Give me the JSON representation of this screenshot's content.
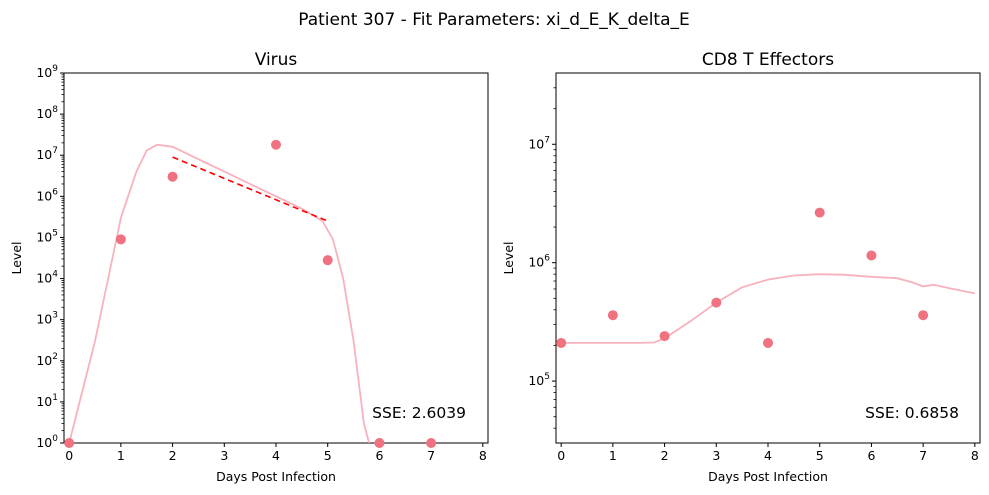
{
  "suptitle": "Patient 307 - Fit Parameters: xi_d_E_K_delta_E",
  "colors": {
    "points": "#f0717f",
    "fit": "#f7b2bd",
    "trend": "#ff0000",
    "axis": "#000000"
  },
  "chart_data": [
    {
      "type": "scatter",
      "title": "Virus",
      "xlabel": "Days Post Infection",
      "ylabel": "Level",
      "xlim": [
        -0.1,
        8.1
      ],
      "ylim": [
        1,
        1000000000
      ],
      "yscale": "log",
      "grid": false,
      "xticks": [
        0,
        1,
        2,
        3,
        4,
        5,
        6,
        7,
        8
      ],
      "yticks": [
        1,
        10,
        100,
        1000,
        10000,
        100000,
        1000000,
        10000000,
        100000000,
        1000000000
      ],
      "ytick_labels": [
        "10^0",
        "10^1",
        "10^2",
        "10^3",
        "10^4",
        "10^5",
        "10^6",
        "10^7",
        "10^8",
        "10^9"
      ],
      "series": [
        {
          "kind": "points",
          "x": [
            0,
            1,
            2,
            4,
            5,
            6,
            7
          ],
          "y": [
            1,
            90000,
            3000000,
            18000000,
            28000,
            1,
            1
          ]
        },
        {
          "kind": "fit-line",
          "x": [
            0,
            0.5,
            1,
            1.3,
            1.5,
            1.7,
            2,
            2.5,
            3,
            3.5,
            4,
            4.5,
            4.9,
            5.1,
            5.3,
            5.5,
            5.7,
            5.8
          ],
          "y": [
            1,
            300,
            300000,
            4000000,
            13000000,
            18000000,
            16000000,
            8000000,
            4000000,
            2000000,
            1000000,
            500000,
            250000,
            90000,
            10000,
            300,
            3,
            1
          ]
        },
        {
          "kind": "trend-line",
          "x": [
            2,
            5
          ],
          "y": [
            9000000,
            250000
          ]
        }
      ],
      "annotation": "SSE: 2.6039"
    },
    {
      "type": "scatter",
      "title": "CD8 T Effectors",
      "xlabel": "Days Post Infection",
      "ylabel": "Level",
      "xlim": [
        -0.1,
        8.1
      ],
      "ylim": [
        30000,
        40000000
      ],
      "yscale": "log",
      "grid": false,
      "xticks": [
        0,
        1,
        2,
        3,
        4,
        5,
        6,
        7,
        8
      ],
      "yticks": [
        100000,
        1000000,
        10000000
      ],
      "ytick_labels": [
        "10^5",
        "10^6",
        "10^7"
      ],
      "series": [
        {
          "kind": "points",
          "x": [
            0,
            1,
            2,
            3,
            4,
            5,
            6,
            7
          ],
          "y": [
            210000,
            360000,
            240000,
            460000,
            210000,
            2650000,
            1150000,
            360000
          ]
        },
        {
          "kind": "fit-line",
          "x": [
            0,
            0.5,
            1,
            1.5,
            1.8,
            2,
            2.5,
            3,
            3.5,
            4,
            4.5,
            5,
            5.5,
            6,
            6.5,
            6.8,
            7,
            7.2,
            7.5,
            8
          ],
          "y": [
            210000,
            210000,
            210000,
            210000,
            212000,
            230000,
            320000,
            460000,
            620000,
            720000,
            780000,
            800000,
            790000,
            760000,
            740000,
            680000,
            630000,
            650000,
            610000,
            550000
          ]
        }
      ],
      "annotation": "SSE: 0.6858"
    }
  ]
}
